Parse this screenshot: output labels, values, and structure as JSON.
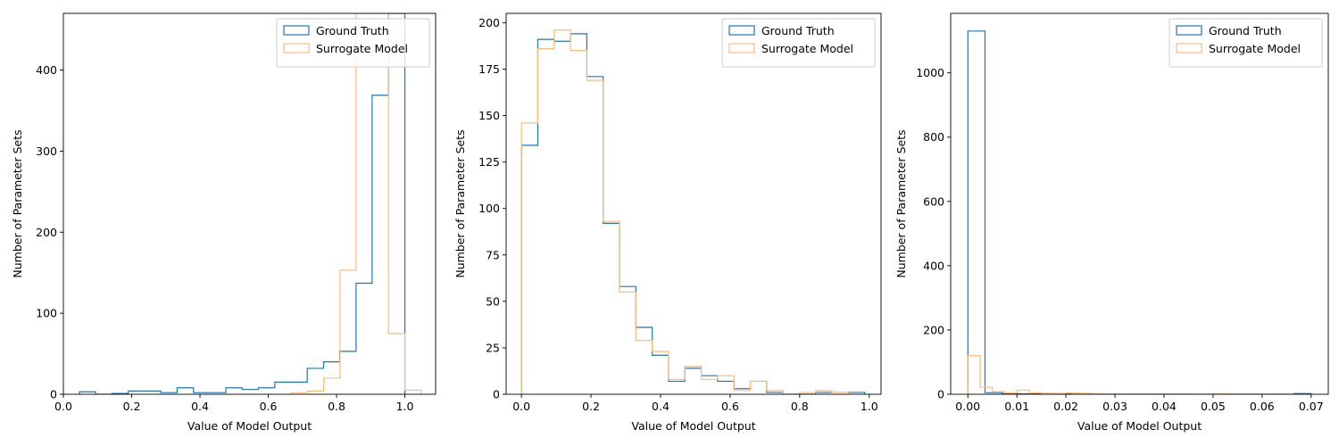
{
  "colors": {
    "ground_truth": "#1f77b4",
    "surrogate": "#ffbb78"
  },
  "chart_data": [
    {
      "type": "histogram",
      "xlabel": "Value of Model Output",
      "ylabel": "Number of Parameter Sets",
      "xlim": [
        0.0,
        1.09
      ],
      "ylim": [
        0,
        470
      ],
      "xticks": [
        0.0,
        0.2,
        0.4,
        0.6,
        0.8,
        1.0
      ],
      "xtick_labels": [
        "0.0",
        "0.2",
        "0.4",
        "0.6",
        "0.8",
        "1.0"
      ],
      "yticks": [
        0,
        100,
        200,
        300,
        400
      ],
      "ytick_labels": [
        "0",
        "100",
        "200",
        "300",
        "400"
      ],
      "legend_position": "top-right",
      "series": [
        {
          "name": "Ground Truth",
          "color_key": "ground_truth",
          "bin_edges": [
            0.047,
            0.094,
            0.142,
            0.19,
            0.238,
            0.285,
            0.333,
            0.381,
            0.428,
            0.476,
            0.523,
            0.571,
            0.619,
            0.666,
            0.714,
            0.762,
            0.809,
            0.857,
            0.904,
            0.952,
            1.0
          ],
          "counts": [
            3,
            0,
            1,
            4,
            4,
            2,
            8,
            2,
            2,
            8,
            6,
            8,
            15,
            15,
            32,
            40,
            53,
            137,
            369,
            470
          ]
        },
        {
          "name": "Surrogate Model",
          "color_key": "surrogate",
          "bin_edges": [
            0.667,
            0.714,
            0.762,
            0.81,
            0.857,
            0.905,
            0.952,
            1.0,
            1.048
          ],
          "counts": [
            2,
            4,
            20,
            153,
            470,
            470,
            75,
            5
          ]
        }
      ]
    },
    {
      "type": "histogram",
      "xlabel": "Value of Model Output",
      "ylabel": "Number of Parameter Sets",
      "xlim": [
        -0.044,
        1.034
      ],
      "ylim": [
        0,
        205
      ],
      "xticks": [
        0.0,
        0.2,
        0.4,
        0.6,
        0.8,
        1.0
      ],
      "xtick_labels": [
        "0.0",
        "0.2",
        "0.4",
        "0.6",
        "0.8",
        "1.0"
      ],
      "yticks": [
        0,
        25,
        50,
        75,
        100,
        125,
        150,
        175,
        200
      ],
      "ytick_labels": [
        "0",
        "25",
        "50",
        "75",
        "100",
        "125",
        "150",
        "175",
        "200"
      ],
      "legend_position": "top-right",
      "series": [
        {
          "name": "Ground Truth",
          "color_key": "ground_truth",
          "bin_edges": [
            0.0,
            0.047,
            0.094,
            0.141,
            0.188,
            0.235,
            0.282,
            0.329,
            0.376,
            0.423,
            0.47,
            0.517,
            0.564,
            0.611,
            0.658,
            0.705,
            0.752,
            0.799,
            0.846,
            0.893,
            0.94,
            0.987
          ],
          "counts": [
            134,
            191,
            190,
            194,
            171,
            92,
            58,
            36,
            21,
            7,
            14,
            10,
            7,
            3,
            7,
            1,
            0,
            0,
            1,
            1,
            1
          ]
        },
        {
          "name": "Surrogate Model",
          "color_key": "surrogate",
          "bin_edges": [
            0.0,
            0.047,
            0.094,
            0.141,
            0.188,
            0.235,
            0.282,
            0.329,
            0.376,
            0.423,
            0.47,
            0.517,
            0.564,
            0.611,
            0.658,
            0.705,
            0.752,
            0.799,
            0.846,
            0.893,
            0.94
          ],
          "counts": [
            146,
            186,
            196,
            185,
            169,
            93,
            55,
            29,
            23,
            8,
            15,
            8,
            10,
            2,
            7,
            2,
            0,
            1,
            2,
            1
          ]
        }
      ]
    },
    {
      "type": "histogram",
      "xlabel": "Value of Model Output",
      "ylabel": "Number of Parameter Sets",
      "xlim": [
        -0.0035,
        0.0735
      ],
      "ylim": [
        0,
        1185
      ],
      "xticks": [
        0.0,
        0.01,
        0.02,
        0.03,
        0.04,
        0.05,
        0.06,
        0.07
      ],
      "xtick_labels": [
        "0.00",
        "0.01",
        "0.02",
        "0.03",
        "0.04",
        "0.05",
        "0.06",
        "0.07"
      ],
      "yticks": [
        0,
        200,
        400,
        600,
        800,
        1000
      ],
      "ytick_labels": [
        "0",
        "200",
        "400",
        "600",
        "800",
        "1000"
      ],
      "legend_position": "top-right",
      "series": [
        {
          "name": "Ground Truth",
          "color_key": "ground_truth",
          "bin_edges": [
            0.0,
            0.0035,
            0.007,
            0.0105,
            0.014,
            0.0175,
            0.021,
            0.0245,
            0.028,
            0.0315,
            0.035,
            0.0385,
            0.042,
            0.0455,
            0.049,
            0.0525,
            0.056,
            0.0595,
            0.063,
            0.0665,
            0.07
          ],
          "counts": [
            1130,
            5,
            2,
            1,
            1,
            1,
            0,
            0,
            0,
            0,
            0,
            0,
            0,
            0,
            0,
            0,
            0,
            0,
            0,
            2
          ]
        },
        {
          "name": "Surrogate Model",
          "color_key": "surrogate",
          "bin_edges": [
            0.0,
            0.0025,
            0.005,
            0.0075,
            0.01,
            0.0125,
            0.015,
            0.0175,
            0.02,
            0.0225,
            0.025,
            0.0275,
            0.03,
            0.0325,
            0.035,
            0.0375,
            0.04,
            0.0425,
            0.045,
            0.0475,
            0.05,
            0.0525
          ],
          "counts": [
            120,
            22,
            8,
            4,
            13,
            5,
            3,
            2,
            4,
            3,
            2,
            1,
            1,
            1,
            1,
            1,
            1,
            1,
            0,
            0,
            2
          ]
        }
      ]
    }
  ]
}
